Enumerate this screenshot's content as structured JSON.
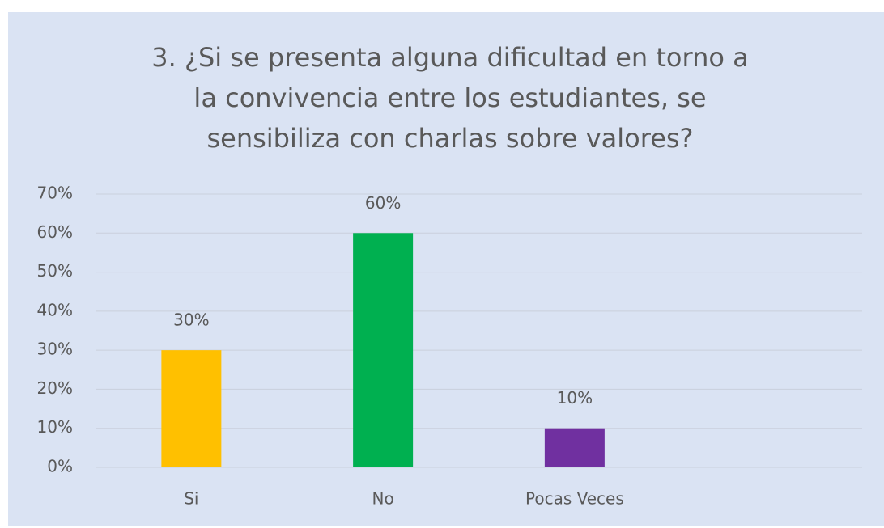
{
  "chart_data": {
    "type": "bar",
    "title": [
      "3.  ¿Si se presenta alguna dificultad en torno  a",
      "la convivencia entre  los estudiantes, se",
      "sensibiliza con charlas sobre valores?"
    ],
    "categories": [
      "Si",
      "No",
      "Pocas Veces",
      null
    ],
    "values": [
      30,
      60,
      10,
      null
    ],
    "value_labels": [
      "30%",
      "60%",
      "10%",
      null
    ],
    "colors": [
      "#ffc000",
      "#00b050",
      "#7030a0",
      null
    ],
    "ylim": [
      0,
      70
    ],
    "yticks": [
      {
        "value": 0,
        "label": "0%"
      },
      {
        "value": 10,
        "label": "10%"
      },
      {
        "value": 20,
        "label": "20%"
      },
      {
        "value": 30,
        "label": "30%"
      },
      {
        "value": 40,
        "label": "40%"
      },
      {
        "value": 50,
        "label": "50%"
      },
      {
        "value": 60,
        "label": "60%"
      },
      {
        "value": 70,
        "label": "70%"
      }
    ],
    "grid": true
  }
}
